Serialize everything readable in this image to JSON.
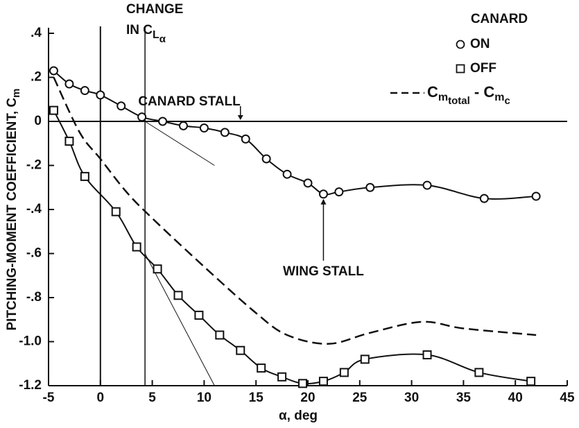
{
  "chart_data": {
    "type": "line",
    "ylabel_parts": [
      "PITCHING-MOMENT COEFFICIENT, C",
      "m"
    ],
    "xlabel": "α, deg",
    "xlim": [
      -5,
      45
    ],
    "xticks": [
      -5,
      0,
      5,
      10,
      15,
      20,
      25,
      30,
      35,
      40,
      45
    ],
    "ylim": [
      -1.2,
      0.4
    ],
    "yticks": [
      {
        "value": 0.4,
        "label": ".4"
      },
      {
        "value": 0.2,
        "label": ".2"
      },
      0,
      {
        "value": -0.2,
        "label": "-.2"
      },
      {
        "value": -0.4,
        "label": "-.4"
      },
      {
        "value": -0.6,
        "label": "-.6"
      },
      {
        "value": -0.8,
        "label": "-.8"
      },
      {
        "value": -1.0,
        "label": "-1.0"
      },
      {
        "value": -1.2,
        "label": "-1.2"
      }
    ],
    "hline": 0,
    "vlines": [
      0,
      4.3
    ],
    "legend_title": "CANARD",
    "series": [
      {
        "name": "ON",
        "marker": "circle",
        "color": "#111",
        "x": [
          -4.5,
          -3,
          -1.5,
          0,
          2,
          4,
          6,
          8,
          10,
          12,
          14,
          16,
          18,
          20,
          21.5,
          23,
          26,
          31.5,
          37,
          42
        ],
        "values": [
          0.23,
          0.17,
          0.14,
          0.12,
          0.07,
          0.02,
          0.0,
          -0.02,
          -0.03,
          -0.05,
          -0.08,
          -0.17,
          -0.24,
          -0.28,
          -0.33,
          -0.32,
          -0.3,
          -0.29,
          -0.35,
          -0.34
        ]
      },
      {
        "name": "OFF",
        "marker": "square",
        "color": "#111",
        "x": [
          -4.5,
          -3,
          -1.5,
          1.5,
          3.5,
          5.5,
          7.5,
          9.5,
          11.5,
          13.5,
          15.5,
          17.5,
          19.5,
          21.5,
          23.5,
          25.5,
          31.5,
          36.5,
          41.5
        ],
        "values": [
          0.05,
          -0.09,
          -0.25,
          -0.41,
          -0.57,
          -0.67,
          -0.79,
          -0.88,
          -0.97,
          -1.04,
          -1.12,
          -1.16,
          -1.19,
          -1.18,
          -1.14,
          -1.08,
          -1.06,
          -1.14,
          -1.18
        ]
      },
      {
        "name_parts": [
          "C",
          "m",
          "total",
          " - C",
          "m",
          "c"
        ],
        "marker": "none",
        "dashed": true,
        "color": "#111",
        "x": [
          -4.5,
          -2,
          0,
          2.5,
          5,
          10,
          15,
          18,
          22,
          26,
          31,
          35,
          42
        ],
        "values": [
          0.2,
          -0.05,
          -0.17,
          -0.32,
          -0.44,
          -0.66,
          -0.87,
          -0.97,
          -1.01,
          -0.96,
          -0.91,
          -0.94,
          -0.97
        ]
      }
    ],
    "tangent_lines": [
      {
        "x": [
          4.3,
          11
        ],
        "values": [
          0,
          -0.2
        ]
      },
      {
        "x": [
          4.3,
          11
        ],
        "values": [
          -0.6,
          -1.2
        ]
      }
    ],
    "annotations": [
      {
        "parts": [
          "CHANGE",
          "IN C",
          "L",
          "α"
        ]
      },
      {
        "text": "CANARD STALL",
        "x": 13.5,
        "y": 0
      },
      {
        "text": "WING STALL",
        "x": 21.5,
        "y": -0.33
      }
    ]
  }
}
